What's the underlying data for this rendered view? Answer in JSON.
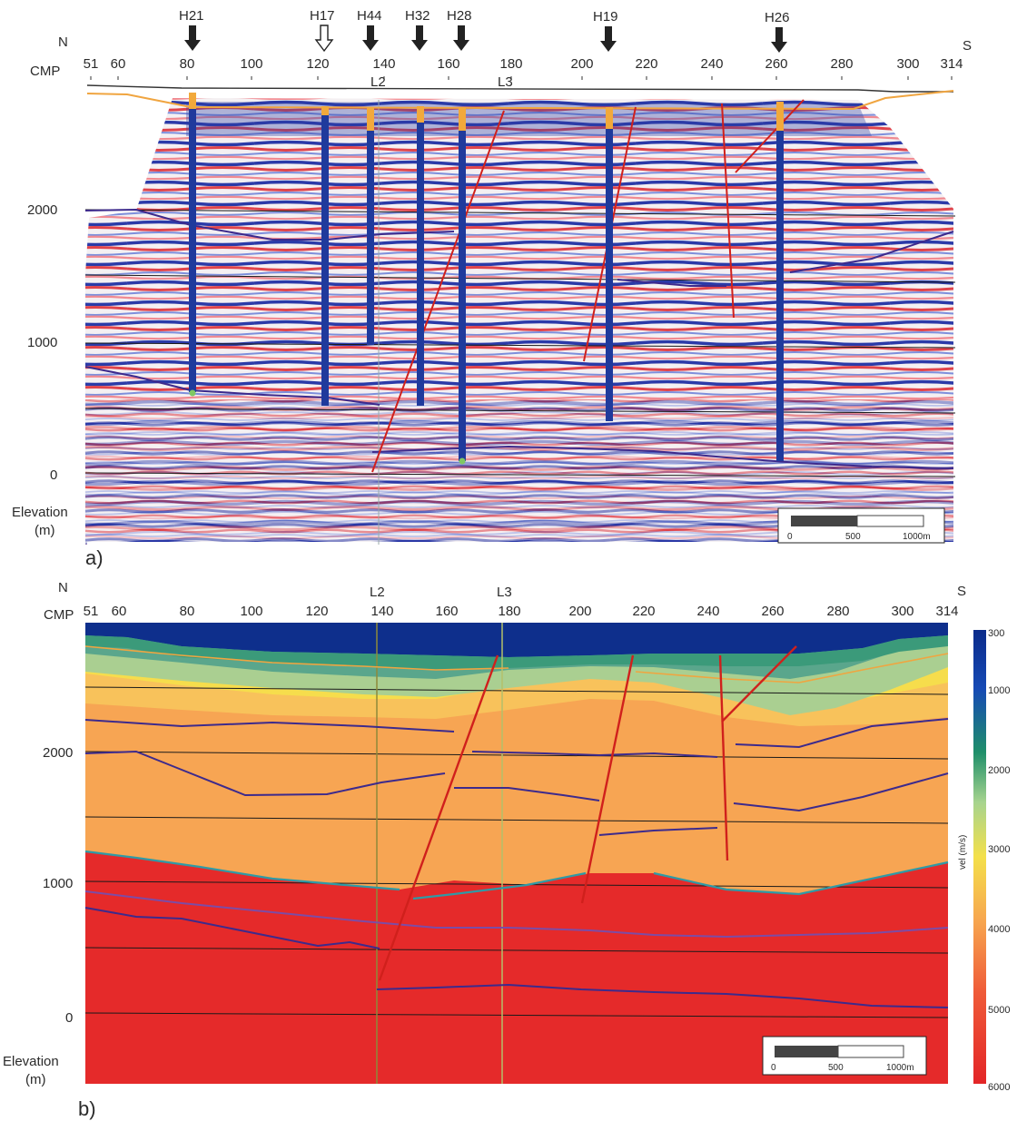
{
  "cmp_label": "CMP",
  "north": "N",
  "south": "S",
  "elevation_label": "Elevation",
  "elevation_unit": "(m)",
  "panel_a": {
    "label": "a)",
    "cmp_ticks": [
      "51",
      "60",
      "80",
      "100",
      "120",
      "140",
      "160",
      "180",
      "200",
      "220",
      "240",
      "260",
      "280",
      "300",
      "314"
    ],
    "elevation_ticks": [
      "2000",
      "1000",
      "0"
    ],
    "line_tags": [
      "L2",
      "L3"
    ],
    "boreholes": [
      {
        "name": "H21",
        "marker": "filled"
      },
      {
        "name": "H17",
        "marker": "open"
      },
      {
        "name": "H44",
        "marker": "filled"
      },
      {
        "name": "H32",
        "marker": "filled"
      },
      {
        "name": "H28",
        "marker": "filled"
      },
      {
        "name": "H19",
        "marker": "filled"
      },
      {
        "name": "H26",
        "marker": "filled"
      }
    ],
    "scale_bar": [
      "0",
      "500",
      "1000m"
    ]
  },
  "panel_b": {
    "label": "b)",
    "cmp_ticks": [
      "51",
      "60",
      "80",
      "100",
      "120",
      "140",
      "160",
      "180",
      "200",
      "220",
      "240",
      "260",
      "280",
      "300",
      "314"
    ],
    "elevation_ticks": [
      "2000",
      "1000",
      "0"
    ],
    "line_tags": [
      "L2",
      "L3"
    ],
    "colorbar_ticks": [
      "300",
      "1000",
      "2000",
      "3000",
      "4000",
      "5000",
      "6000"
    ],
    "colorbar_label": "vel (m/s)",
    "scale_bar": [
      "0",
      "500",
      "1000m"
    ]
  },
  "colors": {
    "horizon": "#3d2a8c",
    "fault": "#d0201c",
    "borehole": "#1f3a9c",
    "borehole_top": "#f2a93b",
    "topo": "#f0a540"
  }
}
